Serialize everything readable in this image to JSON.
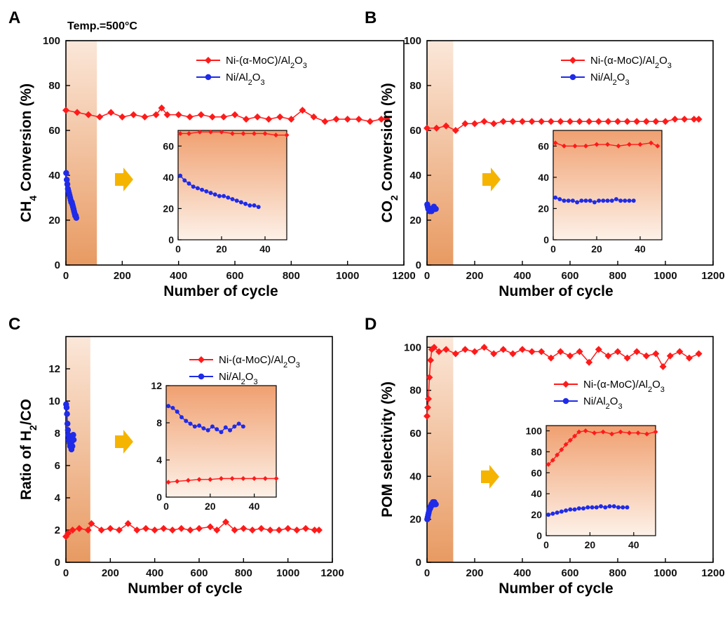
{
  "figure": {
    "annotation": "Temp.=500°C",
    "colors": {
      "red": "#ff1a1a",
      "blue": "#1f2be8",
      "shade_orange": "#f0a070",
      "arrow": "#f5b400"
    }
  },
  "chart_data": [
    {
      "panel": "A",
      "type": "scatter",
      "xlabel": "Number of cycle",
      "ylabel": "CH4 Conversion (%)",
      "xlim": [
        0,
        1200
      ],
      "ylim": [
        0,
        100
      ],
      "xticks": [
        0,
        200,
        400,
        600,
        800,
        1000,
        1200
      ],
      "yticks": [
        0,
        20,
        40,
        60,
        80,
        100
      ],
      "shaded_region": [
        0,
        110
      ],
      "legend_position": "top-right",
      "series": [
        {
          "name": "Ni-(α-MoC)/Al2O3",
          "color": "red",
          "marker": "diamond",
          "x": [
            0,
            40,
            80,
            120,
            160,
            200,
            240,
            280,
            320,
            340,
            360,
            400,
            440,
            480,
            520,
            560,
            600,
            640,
            680,
            720,
            760,
            800,
            840,
            880,
            920,
            960,
            1000,
            1040,
            1080,
            1120,
            1140
          ],
          "y": [
            69,
            68,
            67,
            66,
            68,
            66,
            67,
            66,
            67,
            70,
            67,
            67,
            66,
            67,
            66,
            66,
            67,
            65,
            66,
            65,
            66,
            65,
            69,
            66,
            64,
            65,
            65,
            65,
            64,
            65,
            65
          ]
        },
        {
          "name": "Ni/Al2O3",
          "color": "blue",
          "marker": "circle",
          "x": [
            1,
            3,
            5,
            7,
            9,
            11,
            13,
            15,
            17,
            19,
            21,
            23,
            25,
            27,
            29,
            31,
            33,
            35,
            37
          ],
          "y": [
            41,
            38,
            36,
            34,
            33,
            32,
            31,
            30,
            29,
            28,
            28,
            27,
            26,
            25,
            24,
            23,
            22,
            22,
            21
          ]
        }
      ],
      "inset": {
        "xlim": [
          0,
          50
        ],
        "ylim": [
          0,
          70
        ],
        "xticks": [
          0,
          20,
          40
        ],
        "yticks": [
          0,
          20,
          40,
          60
        ],
        "series": [
          {
            "color": "red",
            "x": [
              1,
              5,
              10,
              15,
              20,
              25,
              30,
              35,
              40,
              45,
              50
            ],
            "y": [
              68,
              68,
              69,
              69,
              69,
              68,
              68,
              68,
              68,
              67,
              67
            ]
          },
          {
            "color": "blue",
            "x": [
              1,
              3,
              5,
              7,
              9,
              11,
              13,
              15,
              17,
              19,
              21,
              23,
              25,
              27,
              29,
              31,
              33,
              35,
              37
            ],
            "y": [
              41,
              38,
              36,
              34,
              33,
              32,
              31,
              30,
              29,
              28,
              28,
              27,
              26,
              25,
              24,
              23,
              22,
              22,
              21
            ]
          }
        ]
      }
    },
    {
      "panel": "B",
      "type": "scatter",
      "xlabel": "Number of cycle",
      "ylabel": "CO2 Conversion (%)",
      "xlim": [
        0,
        1200
      ],
      "ylim": [
        0,
        100
      ],
      "xticks": [
        0,
        200,
        400,
        600,
        800,
        1000,
        1200
      ],
      "yticks": [
        0,
        20,
        40,
        60,
        80,
        100
      ],
      "shaded_region": [
        0,
        110
      ],
      "legend_position": "top-right",
      "series": [
        {
          "name": "Ni-(α-MoC)/Al2O3",
          "color": "red",
          "marker": "diamond",
          "x": [
            0,
            40,
            80,
            120,
            160,
            200,
            240,
            280,
            320,
            360,
            400,
            440,
            480,
            520,
            560,
            600,
            640,
            680,
            720,
            760,
            800,
            840,
            880,
            920,
            960,
            1000,
            1040,
            1080,
            1120,
            1140
          ],
          "y": [
            61,
            61,
            62,
            60,
            63,
            63,
            64,
            63,
            64,
            64,
            64,
            64,
            64,
            64,
            64,
            64,
            64,
            64,
            64,
            64,
            64,
            64,
            64,
            64,
            64,
            64,
            65,
            65,
            65,
            65
          ]
        },
        {
          "name": "Ni/Al2O3",
          "color": "blue",
          "marker": "circle",
          "x": [
            1,
            3,
            5,
            7,
            9,
            11,
            13,
            15,
            17,
            19,
            21,
            23,
            25,
            27,
            29,
            31,
            33,
            35,
            37
          ],
          "y": [
            27,
            26,
            25,
            25,
            25,
            24,
            25,
            25,
            25,
            24,
            25,
            25,
            25,
            25,
            26,
            25,
            25,
            25,
            25
          ]
        }
      ],
      "inset": {
        "xlim": [
          0,
          50
        ],
        "ylim": [
          0,
          70
        ],
        "xticks": [
          0,
          20,
          40
        ],
        "yticks": [
          0,
          20,
          40,
          60
        ],
        "series": [
          {
            "color": "red",
            "x": [
              1,
              5,
              10,
              15,
              20,
              25,
              30,
              35,
              40,
              45,
              48
            ],
            "y": [
              62,
              60,
              60,
              60,
              61,
              61,
              60,
              61,
              61,
              62,
              60
            ]
          },
          {
            "color": "blue",
            "x": [
              1,
              3,
              5,
              7,
              9,
              11,
              13,
              15,
              17,
              19,
              21,
              23,
              25,
              27,
              29,
              31,
              33,
              35,
              37
            ],
            "y": [
              27,
              26,
              25,
              25,
              25,
              24,
              25,
              25,
              25,
              24,
              25,
              25,
              25,
              25,
              26,
              25,
              25,
              25,
              25
            ]
          }
        ]
      }
    },
    {
      "panel": "C",
      "type": "scatter",
      "xlabel": "Number of cycle",
      "ylabel": "Ratio of H2/CO",
      "xlim": [
        0,
        1200
      ],
      "ylim": [
        0,
        14
      ],
      "xticks": [
        0,
        200,
        400,
        600,
        800,
        1000,
        1200
      ],
      "yticks": [
        0,
        2,
        4,
        6,
        8,
        10,
        12
      ],
      "shaded_region": [
        0,
        110
      ],
      "legend_position": "top-right",
      "series": [
        {
          "name": "Ni-(α-MoC)/Al2O3",
          "color": "red",
          "marker": "diamond",
          "x": [
            0,
            10,
            30,
            60,
            100,
            115,
            160,
            200,
            240,
            280,
            320,
            360,
            400,
            440,
            480,
            520,
            560,
            600,
            650,
            680,
            720,
            760,
            800,
            840,
            880,
            920,
            960,
            1000,
            1040,
            1080,
            1120,
            1140
          ],
          "y": [
            1.6,
            1.8,
            2.0,
            2.1,
            2.0,
            2.4,
            2.0,
            2.1,
            2.0,
            2.4,
            2.0,
            2.1,
            2.0,
            2.1,
            2.0,
            2.1,
            2.0,
            2.1,
            2.2,
            2.0,
            2.5,
            2.0,
            2.1,
            2.0,
            2.1,
            2.0,
            2.0,
            2.1,
            2.0,
            2.1,
            2.0,
            2.0
          ]
        },
        {
          "name": "Ni/Al2O3",
          "color": "blue",
          "marker": "circle",
          "x": [
            1,
            3,
            5,
            7,
            9,
            11,
            13,
            15,
            17,
            19,
            21,
            23,
            25,
            27,
            29,
            31,
            33,
            35
          ],
          "y": [
            9.8,
            9.6,
            9.2,
            8.6,
            8.2,
            7.9,
            7.6,
            7.7,
            7.4,
            7.2,
            7.6,
            7.3,
            7.0,
            7.5,
            7.2,
            7.6,
            7.9,
            7.6
          ]
        }
      ],
      "inset": {
        "xlim": [
          0,
          50
        ],
        "ylim": [
          0,
          12
        ],
        "xticks": [
          0,
          20,
          40
        ],
        "yticks": [
          0,
          4,
          8,
          12
        ],
        "series": [
          {
            "color": "red",
            "x": [
              1,
              5,
              10,
              15,
              20,
              25,
              30,
              35,
              40,
              45,
              50
            ],
            "y": [
              1.6,
              1.7,
              1.8,
              1.9,
              1.9,
              2.0,
              2.0,
              2.0,
              2.0,
              2.0,
              2.0
            ]
          },
          {
            "color": "blue",
            "x": [
              1,
              3,
              5,
              7,
              9,
              11,
              13,
              15,
              17,
              19,
              21,
              23,
              25,
              27,
              29,
              31,
              33,
              35
            ],
            "y": [
              9.8,
              9.6,
              9.2,
              8.6,
              8.2,
              7.9,
              7.6,
              7.7,
              7.4,
              7.2,
              7.6,
              7.3,
              7.0,
              7.5,
              7.2,
              7.6,
              7.9,
              7.6
            ]
          }
        ]
      }
    },
    {
      "panel": "D",
      "type": "scatter",
      "xlabel": "Number of cycle",
      "ylabel": "POM selectivity (%)",
      "xlim": [
        0,
        1200
      ],
      "ylim": [
        0,
        105
      ],
      "xticks": [
        0,
        200,
        400,
        600,
        800,
        1000,
        1200
      ],
      "yticks": [
        0,
        20,
        40,
        60,
        80,
        100
      ],
      "shaded_region": [
        0,
        110
      ],
      "legend_position": "middle-right",
      "series": [
        {
          "name": "Ni-(α-MoC)/Al2O3",
          "color": "red",
          "marker": "diamond",
          "x": [
            0,
            3,
            6,
            10,
            15,
            20,
            30,
            50,
            80,
            120,
            160,
            200,
            240,
            280,
            320,
            360,
            400,
            440,
            480,
            520,
            560,
            600,
            640,
            680,
            720,
            760,
            800,
            840,
            880,
            920,
            960,
            990,
            1020,
            1060,
            1100,
            1140
          ],
          "y": [
            68,
            72,
            76,
            86,
            94,
            99,
            100,
            98,
            99,
            97,
            99,
            98,
            100,
            97,
            99,
            97,
            99,
            98,
            98,
            95,
            98,
            96,
            98,
            93,
            99,
            96,
            98,
            95,
            98,
            96,
            97,
            91,
            96,
            98,
            95,
            97
          ]
        },
        {
          "name": "Ni/Al2O3",
          "color": "blue",
          "marker": "circle",
          "x": [
            1,
            3,
            5,
            7,
            9,
            11,
            13,
            15,
            17,
            19,
            21,
            23,
            25,
            27,
            29,
            31,
            33,
            35,
            37
          ],
          "y": [
            20,
            21,
            22,
            23,
            24,
            25,
            25,
            26,
            26,
            27,
            27,
            27,
            28,
            27,
            28,
            28,
            27,
            27,
            27
          ]
        }
      ],
      "inset": {
        "xlim": [
          0,
          50
        ],
        "ylim": [
          0,
          105
        ],
        "xticks": [
          0,
          20,
          40
        ],
        "yticks": [
          0,
          20,
          40,
          60,
          80,
          100
        ],
        "series": [
          {
            "color": "red",
            "x": [
              1,
              3,
              5,
              7,
              9,
              11,
              13,
              15,
              18,
              22,
              26,
              30,
              34,
              38,
              42,
              46,
              50
            ],
            "y": [
              68,
              72,
              77,
              82,
              87,
              91,
              95,
              99,
              100,
              98,
              99,
              97,
              99,
              98,
              98,
              97,
              99
            ]
          },
          {
            "color": "blue",
            "x": [
              1,
              3,
              5,
              7,
              9,
              11,
              13,
              15,
              17,
              19,
              21,
              23,
              25,
              27,
              29,
              31,
              33,
              35,
              37
            ],
            "y": [
              20,
              21,
              22,
              23,
              24,
              25,
              25,
              26,
              26,
              27,
              27,
              27,
              28,
              27,
              28,
              28,
              27,
              27,
              27
            ]
          }
        ]
      }
    }
  ]
}
